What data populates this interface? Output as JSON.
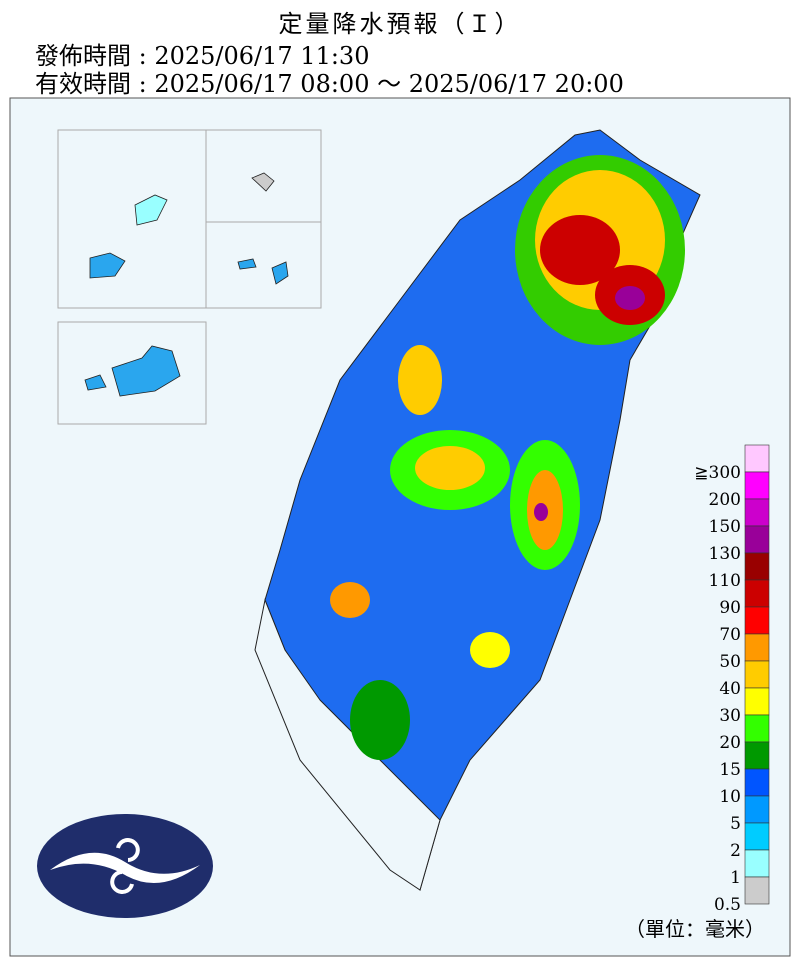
{
  "header": {
    "title": "定量降水預報（Ｉ）",
    "issued": "發佈時間 : 2025/06/17 11:30",
    "valid": "有效時間 : 2025/06/17 08:00 ～ 2025/06/17 20:00"
  },
  "legend": {
    "unit": "（單位：毫米）",
    "items": [
      {
        "label": "≧300",
        "color": "#ffc8ff"
      },
      {
        "label": "200",
        "color": "#ff00ff"
      },
      {
        "label": "150",
        "color": "#cc00cc"
      },
      {
        "label": "130",
        "color": "#990099"
      },
      {
        "label": "110",
        "color": "#990000"
      },
      {
        "label": "90",
        "color": "#cc0000"
      },
      {
        "label": "70",
        "color": "#ff0000"
      },
      {
        "label": "50",
        "color": "#ff9900"
      },
      {
        "label": "40",
        "color": "#ffcc00"
      },
      {
        "label": "30",
        "color": "#ffff00"
      },
      {
        "label": "20",
        "color": "#33ff00"
      },
      {
        "label": "15",
        "color": "#009900"
      },
      {
        "label": "10",
        "color": "#0055ff"
      },
      {
        "label": "5",
        "color": "#0099ff"
      },
      {
        "label": "2",
        "color": "#00ccff"
      },
      {
        "label": "1",
        "color": "#99ffff"
      },
      {
        "label": "0.5",
        "color": "#cccccc"
      }
    ]
  }
}
